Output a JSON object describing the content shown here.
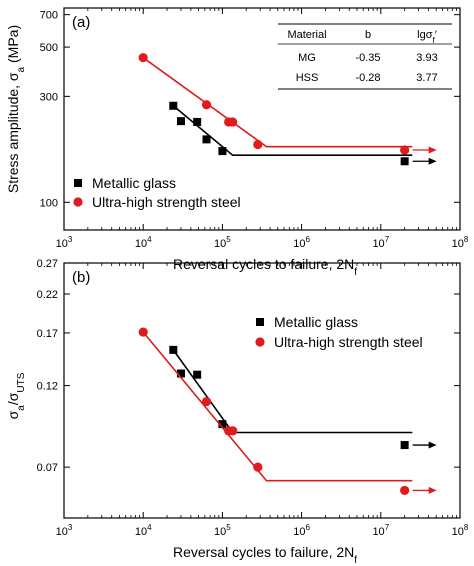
{
  "chart_data": [
    {
      "type": "scatter",
      "panel_label": "(a)",
      "xlabel": "Reversal cycles to failure, 2N",
      "xlabel_sub": "f",
      "ylabel": "Stress amplitude, σ",
      "ylabel_sub": "a",
      "ylabel_unit": " (MPa)",
      "x_scale": "log",
      "y_scale": "log",
      "xlim": [
        1000,
        100000000
      ],
      "ylim": [
        75,
        750
      ],
      "x_tick_values": [
        1000,
        10000,
        100000,
        1000000,
        10000000,
        100000000
      ],
      "x_tick_exponents": [
        "3",
        "4",
        "5",
        "6",
        "7",
        "8"
      ],
      "y_ticks": [
        {
          "value": 100,
          "label": "100"
        },
        {
          "value": 300,
          "label": "300"
        },
        {
          "value": 500,
          "label": "500"
        },
        {
          "value": 700,
          "label": "700"
        }
      ],
      "legend_position": "bottom-left",
      "series": [
        {
          "name": "Metallic glass",
          "color": "#000000",
          "marker": "square",
          "points": [
            [
              24000,
              272
            ],
            [
              30000,
              232
            ],
            [
              48000,
              230
            ],
            [
              63000,
              192
            ],
            [
              100000,
              170
            ],
            [
              20000000,
              153
            ]
          ],
          "fit_line": [
            [
              24000,
              272
            ],
            [
              135000,
              163
            ],
            [
              25000000,
              163
            ]
          ],
          "runout_arrow": true
        },
        {
          "name": "Ultra-high strength steel",
          "color": "#e01b1b",
          "marker": "circle",
          "points": [
            [
              10000,
              448
            ],
            [
              63000,
              275
            ],
            [
              120000,
              230
            ],
            [
              135000,
              230
            ],
            [
              280000,
              182
            ],
            [
              20000000,
              172
            ]
          ],
          "fit_line": [
            [
              10000,
              448
            ],
            [
              360000,
              178
            ],
            [
              25000000,
              178
            ]
          ],
          "runout_arrow": true
        }
      ],
      "inset_table": {
        "headers": [
          "Material",
          "b",
          "lgσ"
        ],
        "header_sub": "f",
        "header_prime": "′",
        "rows": [
          [
            "MG",
            "-0.35",
            "3.93"
          ],
          [
            "HSS",
            "-0.28",
            "3.77"
          ]
        ]
      }
    },
    {
      "type": "scatter",
      "panel_label": "(b)",
      "xlabel": "Reversal cycles to failure, 2N",
      "xlabel_sub": "f",
      "ylabel": "σ",
      "ylabel_sub": "a",
      "ylabel_mid": "/σ",
      "ylabel_sub2": "UTS",
      "x_scale": "log",
      "y_scale": "log",
      "xlim": [
        1000,
        100000000
      ],
      "ylim": [
        0.05,
        0.27
      ],
      "x_tick_values": [
        1000,
        10000,
        100000,
        1000000,
        10000000,
        100000000
      ],
      "x_tick_exponents": [
        "3",
        "4",
        "5",
        "6",
        "7",
        "8"
      ],
      "y_ticks": [
        {
          "value": 0.07,
          "label": "0.07"
        },
        {
          "value": 0.12,
          "label": "0.12"
        },
        {
          "value": 0.17,
          "label": "0.17"
        },
        {
          "value": 0.22,
          "label": "0.22"
        },
        {
          "value": 0.27,
          "label": "0.27"
        }
      ],
      "legend_position": "top-right",
      "series": [
        {
          "name": "Metallic glass",
          "color": "#000000",
          "marker": "square",
          "points": [
            [
              24000,
              0.152
            ],
            [
              30000,
              0.13
            ],
            [
              48000,
              0.129
            ],
            [
              100000,
              0.093
            ],
            [
              20000000,
              0.081
            ]
          ],
          "fit_line": [
            [
              24000,
              0.152
            ],
            [
              135000,
              0.088
            ],
            [
              25000000,
              0.088
            ]
          ],
          "runout_arrow": true
        },
        {
          "name": "Ultra-high strength steel",
          "color": "#e01b1b",
          "marker": "circle",
          "points": [
            [
              10000,
              0.171
            ],
            [
              63000,
              0.108
            ],
            [
              120000,
              0.089
            ],
            [
              135000,
              0.089
            ],
            [
              280000,
              0.07
            ],
            [
              20000000,
              0.06
            ]
          ],
          "fit_line": [
            [
              10000,
              0.171
            ],
            [
              360000,
              0.064
            ],
            [
              25000000,
              0.064
            ]
          ],
          "runout_arrow": true
        }
      ]
    }
  ]
}
